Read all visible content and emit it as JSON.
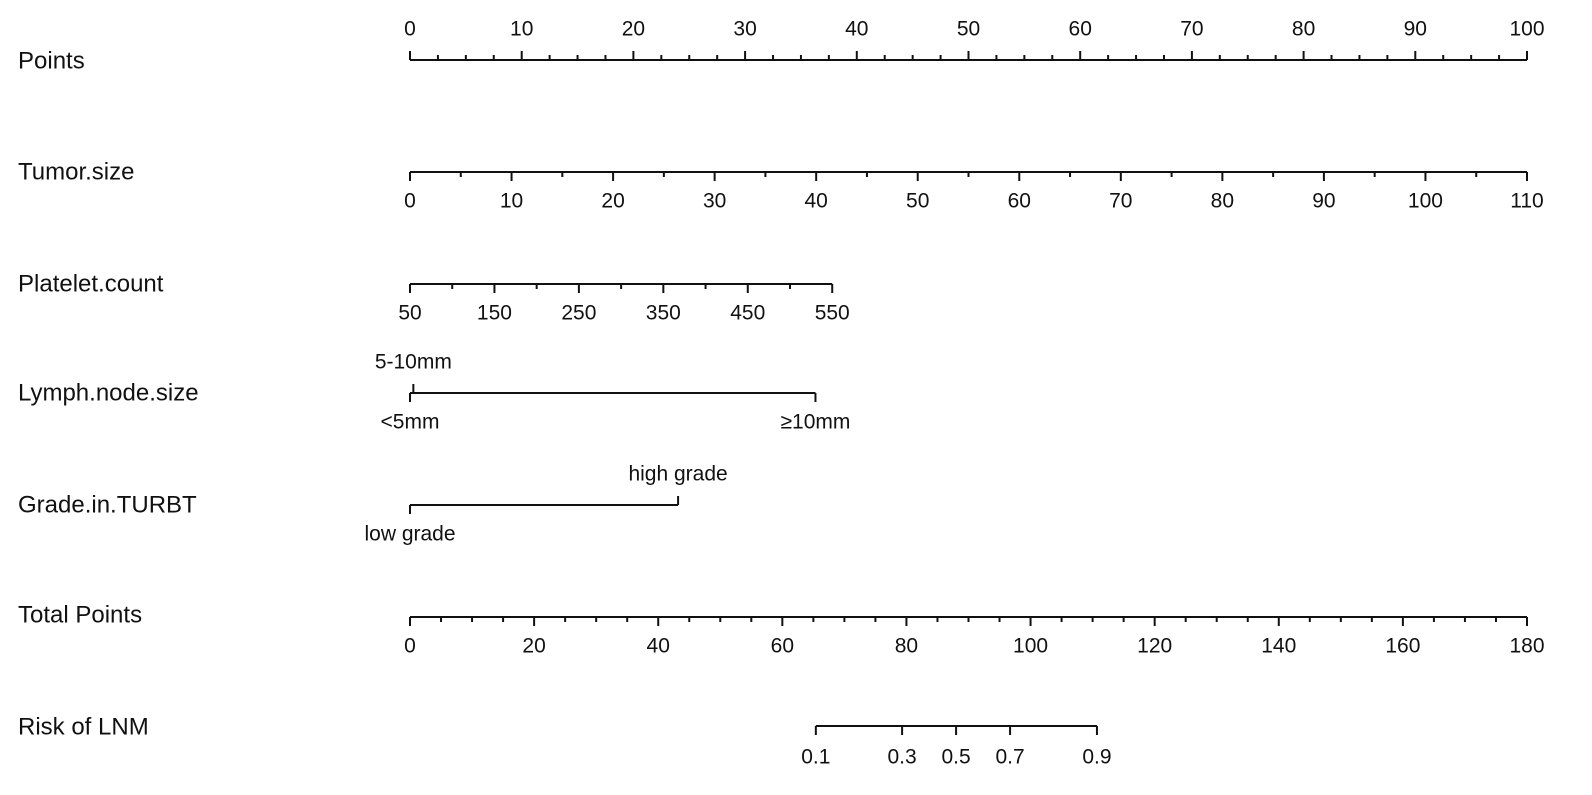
{
  "chart_data": {
    "type": "nomogram",
    "points_axis": {
      "label": "Points",
      "lim": [
        0,
        100
      ],
      "ticks": [
        0,
        10,
        20,
        30,
        40,
        50,
        60,
        70,
        80,
        90,
        100
      ],
      "minor_ticks": [
        2.5,
        5,
        7.5,
        12.5,
        15,
        17.5,
        22.5,
        25,
        27.5,
        32.5,
        35,
        37.5,
        42.5,
        45,
        47.5,
        52.5,
        55,
        57.5,
        62.5,
        65,
        67.5,
        72.5,
        75,
        77.5,
        82.5,
        85,
        87.5,
        92.5,
        95,
        97.5
      ]
    },
    "predictors": [
      {
        "label": "Tumor.size",
        "lim": [
          0,
          110
        ],
        "points": [
          0,
          100
        ],
        "ticks": [
          0,
          10,
          20,
          30,
          40,
          50,
          60,
          70,
          80,
          90,
          100,
          110
        ],
        "minor_ticks": [
          5,
          15,
          25,
          35,
          45,
          55,
          65,
          75,
          85,
          95,
          105
        ]
      },
      {
        "label": "Platelet.count",
        "lim": [
          50,
          550
        ],
        "points": [
          0,
          37.8
        ],
        "ticks": [
          50,
          150,
          250,
          350,
          450,
          550
        ],
        "minor_ticks": [
          100,
          200,
          300,
          400,
          500
        ]
      },
      {
        "label": "Lymph.node.size",
        "levels": [
          "<5mm",
          "5-10mm",
          "≥10mm"
        ],
        "level_points": [
          0,
          0.3,
          36.3
        ]
      },
      {
        "label": "Grade.in.TURBT",
        "levels": [
          "low grade",
          "high grade"
        ],
        "level_points": [
          0,
          24.0
        ]
      }
    ],
    "total_axis": {
      "label": "Total Points",
      "lim": [
        0,
        180
      ],
      "ticks": [
        0,
        20,
        40,
        60,
        80,
        100,
        120,
        140,
        160,
        180
      ],
      "minor_ticks": [
        5,
        10,
        15,
        25,
        30,
        35,
        45,
        50,
        55,
        65,
        70,
        75,
        85,
        90,
        95,
        105,
        110,
        115,
        125,
        130,
        135,
        145,
        150,
        155,
        165,
        170,
        175
      ]
    },
    "risk_axis": {
      "label": "Risk of LNM",
      "ticks": [
        0.1,
        0.3,
        0.5,
        0.7,
        0.9
      ],
      "total_points": [
        65.4,
        79.3,
        88.0,
        96.7,
        110.7
      ]
    }
  }
}
